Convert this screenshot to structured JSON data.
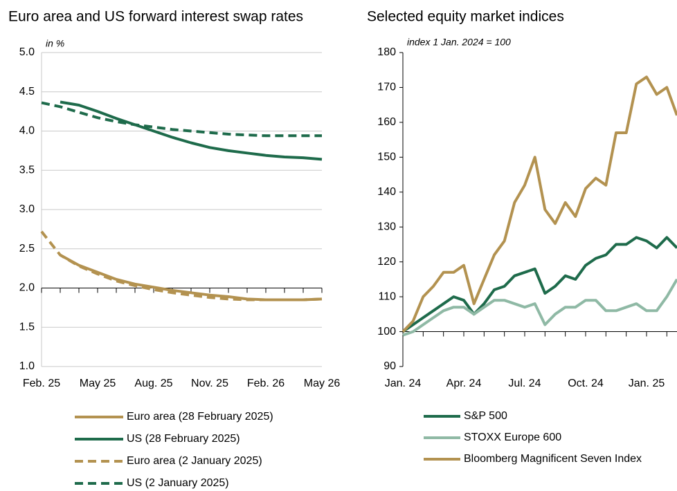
{
  "chart_data": [
    {
      "type": "line",
      "title": "Euro area and US forward interest swap rates",
      "subtitle": "in %",
      "categories": [
        "Feb. 25",
        null,
        null,
        "May 25",
        null,
        null,
        "Aug. 25",
        null,
        null,
        "Nov. 25",
        null,
        null,
        "Feb. 26",
        null,
        null,
        "May 26"
      ],
      "ylim": [
        1.0,
        5.0
      ],
      "yticks": [
        {
          "value": 1.0,
          "label": "1.0"
        },
        {
          "value": 1.5,
          "label": "1.5"
        },
        {
          "value": 2.0,
          "label": "2.0"
        },
        {
          "value": 2.5,
          "label": "2.5"
        },
        {
          "value": 3.0,
          "label": "3.0"
        },
        {
          "value": 3.5,
          "label": "3.5"
        },
        {
          "value": 4.0,
          "label": "4.0"
        },
        {
          "value": 4.5,
          "label": "4.5"
        },
        {
          "value": 5.0,
          "label": "5.0"
        }
      ],
      "x_axis_at": 2.0,
      "grid": true,
      "series": [
        {
          "name": "Euro area (28 February 2025)",
          "color": "#b39250",
          "dashed": false,
          "values": [
            null,
            2.42,
            2.29,
            2.2,
            2.11,
            2.05,
            2.01,
            1.97,
            1.94,
            1.91,
            1.89,
            1.86,
            1.85,
            1.85,
            1.85,
            1.86
          ]
        },
        {
          "name": "US (28 February 2025)",
          "color": "#1e6b4b",
          "dashed": false,
          "values": [
            null,
            4.37,
            4.33,
            4.25,
            4.16,
            4.08,
            4.0,
            3.92,
            3.85,
            3.79,
            3.75,
            3.72,
            3.69,
            3.67,
            3.66,
            3.64
          ]
        },
        {
          "name": "Euro area (2 January 2025)",
          "color": "#b39250",
          "dashed": true,
          "values": [
            2.72,
            2.42,
            2.28,
            2.18,
            2.09,
            2.03,
            1.98,
            1.94,
            1.91,
            1.88,
            1.86,
            1.85,
            1.85,
            1.85,
            1.85,
            1.86
          ]
        },
        {
          "name": "US (2 January 2025)",
          "color": "#1e6b4b",
          "dashed": true,
          "values": [
            4.36,
            4.31,
            4.24,
            4.17,
            4.12,
            4.08,
            4.05,
            4.02,
            4.0,
            3.98,
            3.96,
            3.95,
            3.94,
            3.94,
            3.94,
            3.94
          ]
        }
      ]
    },
    {
      "type": "line",
      "title": "Selected equity market indices",
      "subtitle": "index 1 Jan. 2024 = 100",
      "categories": [
        "Jan. 24",
        null,
        null,
        null,
        null,
        null,
        "Apr. 24",
        null,
        null,
        null,
        null,
        null,
        "Jul. 24",
        null,
        null,
        null,
        null,
        null,
        "Oct. 24",
        null,
        null,
        null,
        null,
        null,
        "Jan. 25",
        null,
        null,
        null
      ],
      "ylim": [
        90,
        180
      ],
      "yticks": [
        90,
        100,
        110,
        120,
        130,
        140,
        150,
        160,
        170,
        180
      ],
      "x_axis_at": 100,
      "grid": false,
      "series": [
        {
          "name": "S&P 500",
          "color": "#1e6b4b",
          "dashed": false,
          "values": [
            100,
            102,
            104,
            106,
            108,
            110,
            109,
            105,
            108,
            112,
            113,
            116,
            117,
            118,
            111,
            113,
            116,
            115,
            119,
            121,
            122,
            125,
            125,
            127,
            126,
            124,
            127,
            124
          ]
        },
        {
          "name": "STOXX Europe 600",
          "color": "#8fb9a5",
          "dashed": false,
          "values": [
            99,
            100,
            102,
            104,
            106,
            107,
            107,
            105,
            107,
            109,
            109,
            108,
            107,
            108,
            102,
            105,
            107,
            107,
            109,
            109,
            106,
            106,
            107,
            108,
            106,
            106,
            110,
            115
          ]
        },
        {
          "name": "Bloomberg Magnificent Seven Index",
          "color": "#b39250",
          "dashed": false,
          "values": [
            100,
            103,
            110,
            113,
            117,
            117,
            119,
            108,
            115,
            122,
            126,
            137,
            142,
            150,
            135,
            131,
            137,
            133,
            141,
            144,
            142,
            157,
            157,
            171,
            173,
            168,
            170,
            162
          ]
        }
      ]
    }
  ]
}
